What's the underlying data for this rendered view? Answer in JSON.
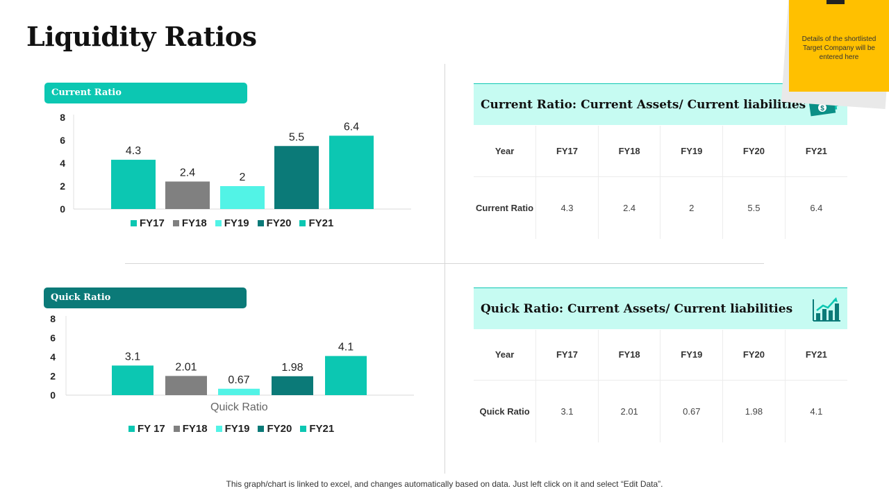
{
  "title": "Liquidity Ratios",
  "colors": {
    "teal": "#0cc7b2",
    "gray": "#808080",
    "aqua": "#52f3e6",
    "dark_teal": "#0b7a78",
    "light_band": "#c6fbf2",
    "note_yellow": "#ffc000"
  },
  "chart_data": [
    {
      "type": "bar",
      "title": "Current Ratio",
      "categories": [
        "FY17",
        "FY18",
        "FY19",
        "FY20",
        "FY21"
      ],
      "values": [
        4.3,
        2.4,
        2,
        5.5,
        6.4
      ],
      "value_labels": [
        "4.3",
        "2.4",
        "2",
        "5.5",
        "6.4"
      ],
      "colors": [
        "#0cc7b2",
        "#808080",
        "#52f3e6",
        "#0b7a78",
        "#0cc7b2"
      ],
      "legend": [
        "FY17",
        "FY18",
        "FY19",
        "FY20",
        "FY21"
      ],
      "ylim": [
        0,
        8
      ],
      "yticks": [
        "0",
        "2",
        "4",
        "6",
        "8"
      ],
      "xlabel": "",
      "grid": false
    },
    {
      "type": "bar",
      "title": "Quick Ratio",
      "categories": [
        "FY 17",
        "FY18",
        "FY19",
        "FY20",
        "FY21"
      ],
      "values": [
        3.1,
        2.01,
        0.67,
        1.98,
        4.1
      ],
      "value_labels": [
        "3.1",
        "2.01",
        "0.67",
        "1.98",
        "4.1"
      ],
      "colors": [
        "#0cc7b2",
        "#808080",
        "#52f3e6",
        "#0b7a78",
        "#0cc7b2"
      ],
      "legend": [
        "FY 17",
        "FY18",
        "FY19",
        "FY20",
        "FY21"
      ],
      "ylim": [
        0,
        8
      ],
      "yticks": [
        "0",
        "2",
        "4",
        "6",
        "8"
      ],
      "xlabel": "Quick Ratio",
      "grid": false
    }
  ],
  "current_table": {
    "heading": "Current Ratio: Current Assets/ Current liabilities",
    "icon": "money-icon",
    "year_label": "Year",
    "years": [
      "FY17",
      "FY18",
      "FY19",
      "FY20",
      "FY21"
    ],
    "row_label": "Current Ratio",
    "values": [
      "4.3",
      "2.4",
      "2",
      "5.5",
      "6.4"
    ]
  },
  "quick_table": {
    "heading": "Quick Ratio: Current Assets/ Current liabilities",
    "icon": "growth-chart-icon",
    "year_label": "Year",
    "years": [
      "FY17",
      "FY18",
      "FY19",
      "FY20",
      "FY21"
    ],
    "row_label": "Quick Ratio",
    "values": [
      "3.1",
      "2.01",
      "0.67",
      "1.98",
      "4.1"
    ]
  },
  "sticky_note": {
    "text": "Details of the shortlisted Target Company will be entered here"
  },
  "footer": "This graph/chart is linked to excel, and changes automatically based on data. Just left click on it and select “Edit Data”."
}
